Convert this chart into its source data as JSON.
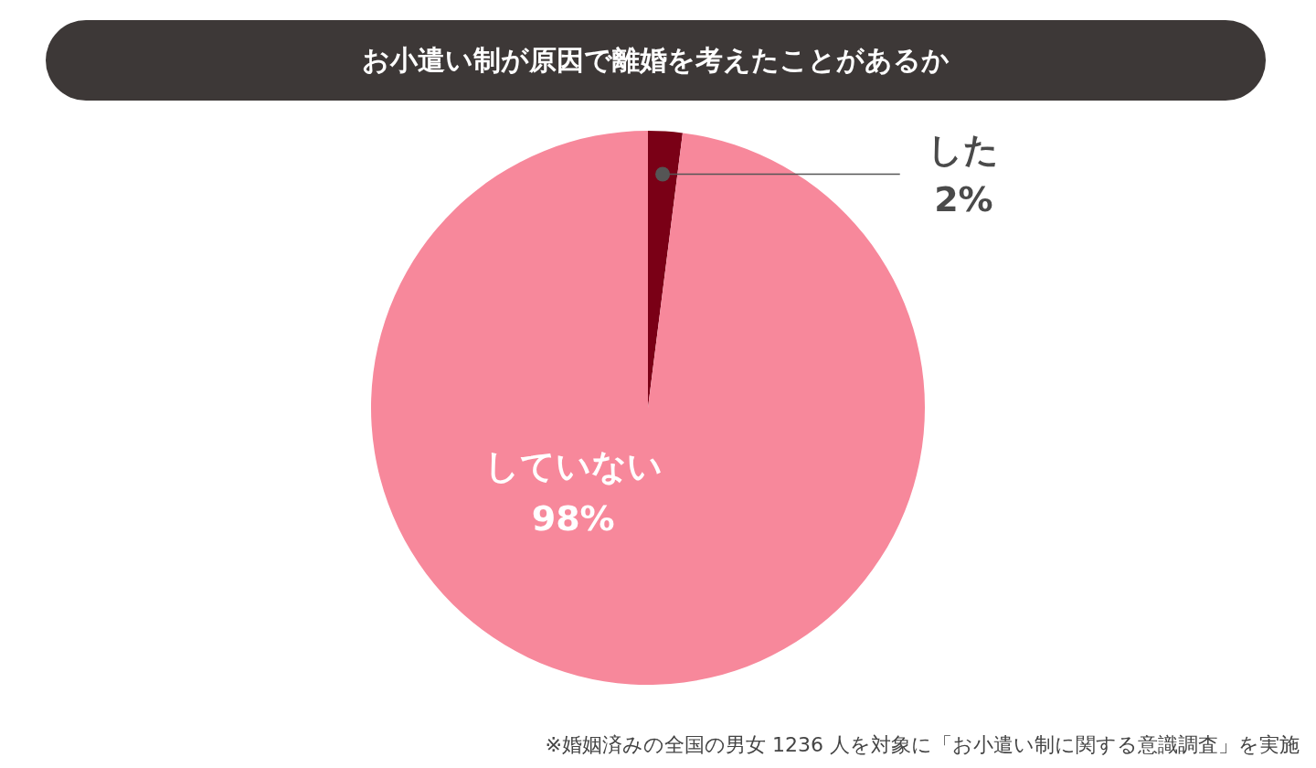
{
  "chart_data": {
    "type": "pie",
    "title": "お小遣い制が原因で離婚を考えたことがあるか",
    "categories": [
      "した",
      "していない"
    ],
    "values": [
      2,
      98
    ],
    "colors": [
      "#7a0016",
      "#f7889b"
    ],
    "value_labels": [
      "2%",
      "98%"
    ],
    "annotations": [
      "※婚姻済みの全国の男女 1236 人を対象に「お小遣い制に関する意識調査」を実施"
    ]
  }
}
